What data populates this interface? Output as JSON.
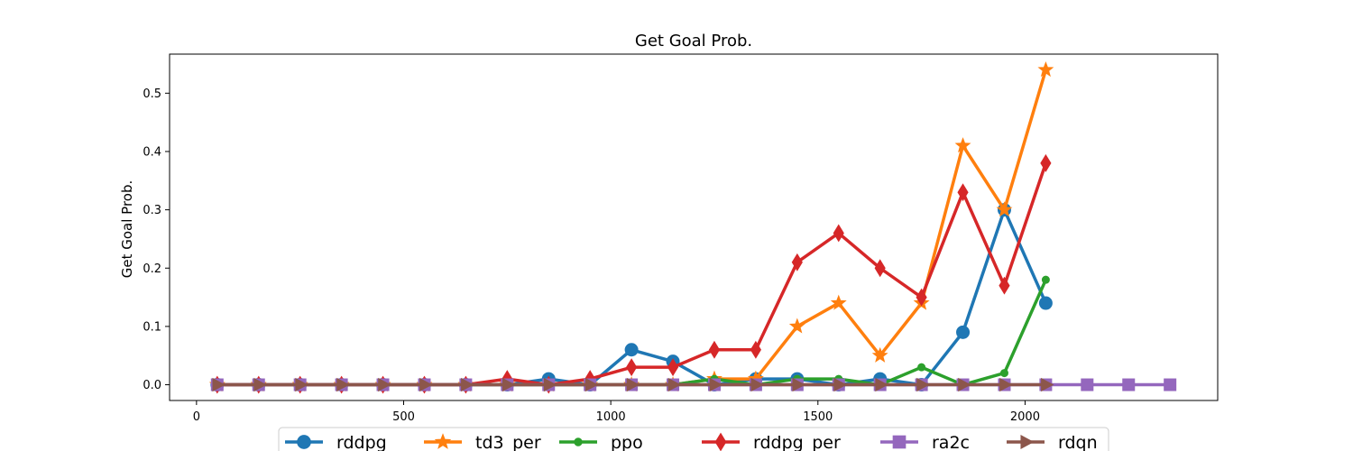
{
  "chart_data": {
    "type": "line",
    "title": "Get Goal Prob.",
    "xlabel": "",
    "ylabel": "Get Goal Prob.",
    "xlim": [
      -65,
      2465
    ],
    "ylim": [
      -0.027,
      0.567
    ],
    "xticks": [
      0,
      500,
      1000,
      1500,
      2000
    ],
    "yticks": [
      0.0,
      0.1,
      0.2,
      0.3,
      0.4,
      0.5
    ],
    "xtick_labels": [
      "0",
      "500",
      "1000",
      "1500",
      "2000"
    ],
    "ytick_labels": [
      "0.0",
      "0.1",
      "0.2",
      "0.3",
      "0.4",
      "0.5"
    ],
    "grid": false,
    "legend_position": "bottom-center",
    "series": [
      {
        "name": "rddpg",
        "color": "#1f77b4",
        "marker": "circle",
        "x": [
          50,
          150,
          250,
          350,
          450,
          550,
          650,
          750,
          850,
          950,
          1050,
          1150,
          1250,
          1350,
          1450,
          1550,
          1650,
          1750,
          1850,
          1950,
          2050
        ],
        "y": [
          0,
          0,
          0,
          0,
          0,
          0,
          0,
          0,
          0.01,
          0,
          0.06,
          0.04,
          0,
          0.01,
          0.01,
          0,
          0.01,
          0,
          0.09,
          0.3,
          0.14
        ]
      },
      {
        "name": "td3_per",
        "color": "#ff7f0e",
        "marker": "star",
        "x": [
          50,
          150,
          250,
          350,
          450,
          550,
          650,
          750,
          850,
          950,
          1050,
          1150,
          1250,
          1350,
          1450,
          1550,
          1650,
          1750,
          1850,
          1950,
          2050
        ],
        "y": [
          0,
          0,
          0,
          0,
          0,
          0,
          0,
          0,
          0,
          0,
          0,
          0,
          0.01,
          0.01,
          0.1,
          0.14,
          0.05,
          0.14,
          0.41,
          0.3,
          0.54
        ]
      },
      {
        "name": "ppo",
        "color": "#2ca02c",
        "marker": "point",
        "x": [
          50,
          150,
          250,
          350,
          450,
          550,
          650,
          750,
          850,
          950,
          1050,
          1150,
          1250,
          1350,
          1450,
          1550,
          1650,
          1750,
          1850,
          1950,
          2050
        ],
        "y": [
          0,
          0,
          0,
          0,
          0,
          0,
          0,
          0,
          0,
          0,
          0,
          0,
          0.01,
          0,
          0.01,
          0.01,
          0,
          0.03,
          0,
          0.02,
          0.18
        ]
      },
      {
        "name": "rddpg_per",
        "color": "#d62728",
        "marker": "thin_diamond",
        "x": [
          50,
          150,
          250,
          350,
          450,
          550,
          650,
          750,
          850,
          950,
          1050,
          1150,
          1250,
          1350,
          1450,
          1550,
          1650,
          1750,
          1850,
          1950,
          2050
        ],
        "y": [
          0,
          0,
          0,
          0,
          0,
          0,
          0,
          0.01,
          0,
          0.01,
          0.03,
          0.03,
          0.06,
          0.06,
          0.21,
          0.26,
          0.2,
          0.15,
          0.33,
          0.17,
          0.38
        ]
      },
      {
        "name": "ra2c",
        "color": "#9467bd",
        "marker": "square",
        "x": [
          50,
          150,
          250,
          350,
          450,
          550,
          650,
          750,
          850,
          950,
          1050,
          1150,
          1250,
          1350,
          1450,
          1550,
          1650,
          1750,
          1850,
          1950,
          2050,
          2150,
          2250,
          2350
        ],
        "y": [
          0,
          0,
          0,
          0,
          0,
          0,
          0,
          0,
          0,
          0,
          0,
          0,
          0,
          0,
          0,
          0,
          0,
          0,
          0,
          0,
          0,
          0,
          0,
          0
        ]
      },
      {
        "name": "rdqn",
        "color": "#8c564b",
        "marker": "triangle_right",
        "x": [
          50,
          150,
          250,
          350,
          450,
          550,
          650,
          750,
          850,
          950,
          1050,
          1150,
          1250,
          1350,
          1450,
          1550,
          1650,
          1750,
          1850,
          1950,
          2050
        ],
        "y": [
          0,
          0,
          0,
          0,
          0,
          0,
          0,
          0,
          0,
          0,
          0,
          0,
          0,
          0,
          0,
          0,
          0,
          0,
          0,
          0,
          0
        ]
      }
    ]
  }
}
